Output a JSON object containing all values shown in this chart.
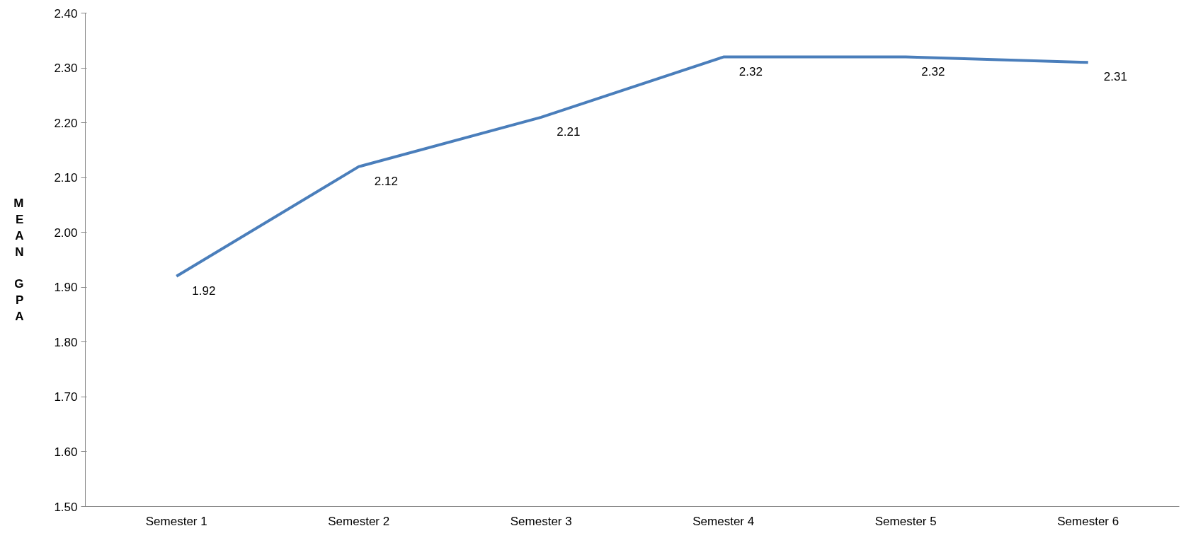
{
  "chart_data": {
    "type": "line",
    "ylabel": "MEAN GPA",
    "categories": [
      "Semester 1",
      "Semester 2",
      "Semester 3",
      "Semester 4",
      "Semester 5",
      "Semester 6"
    ],
    "series": [
      {
        "color": "#4a7ebb",
        "values": [
          1.92,
          2.12,
          2.21,
          2.32,
          2.32,
          2.31
        ]
      }
    ],
    "ylim": [
      1.5,
      2.4
    ],
    "yticks": [
      {
        "value": 1.5,
        "label": "1.50"
      },
      {
        "value": 1.6,
        "label": "1.60"
      },
      {
        "value": 1.7,
        "label": "1.70"
      },
      {
        "value": 1.8,
        "label": "1.80"
      },
      {
        "value": 1.9,
        "label": "1.90"
      },
      {
        "value": 2.0,
        "label": "2.00"
      },
      {
        "value": 2.1,
        "label": "2.10"
      },
      {
        "value": 2.2,
        "label": "2.20"
      },
      {
        "value": 2.3,
        "label": "2.30"
      },
      {
        "value": 2.4,
        "label": "2.40"
      }
    ],
    "data_labels": true,
    "grid": false,
    "marker": "none",
    "line_style": "solid"
  }
}
